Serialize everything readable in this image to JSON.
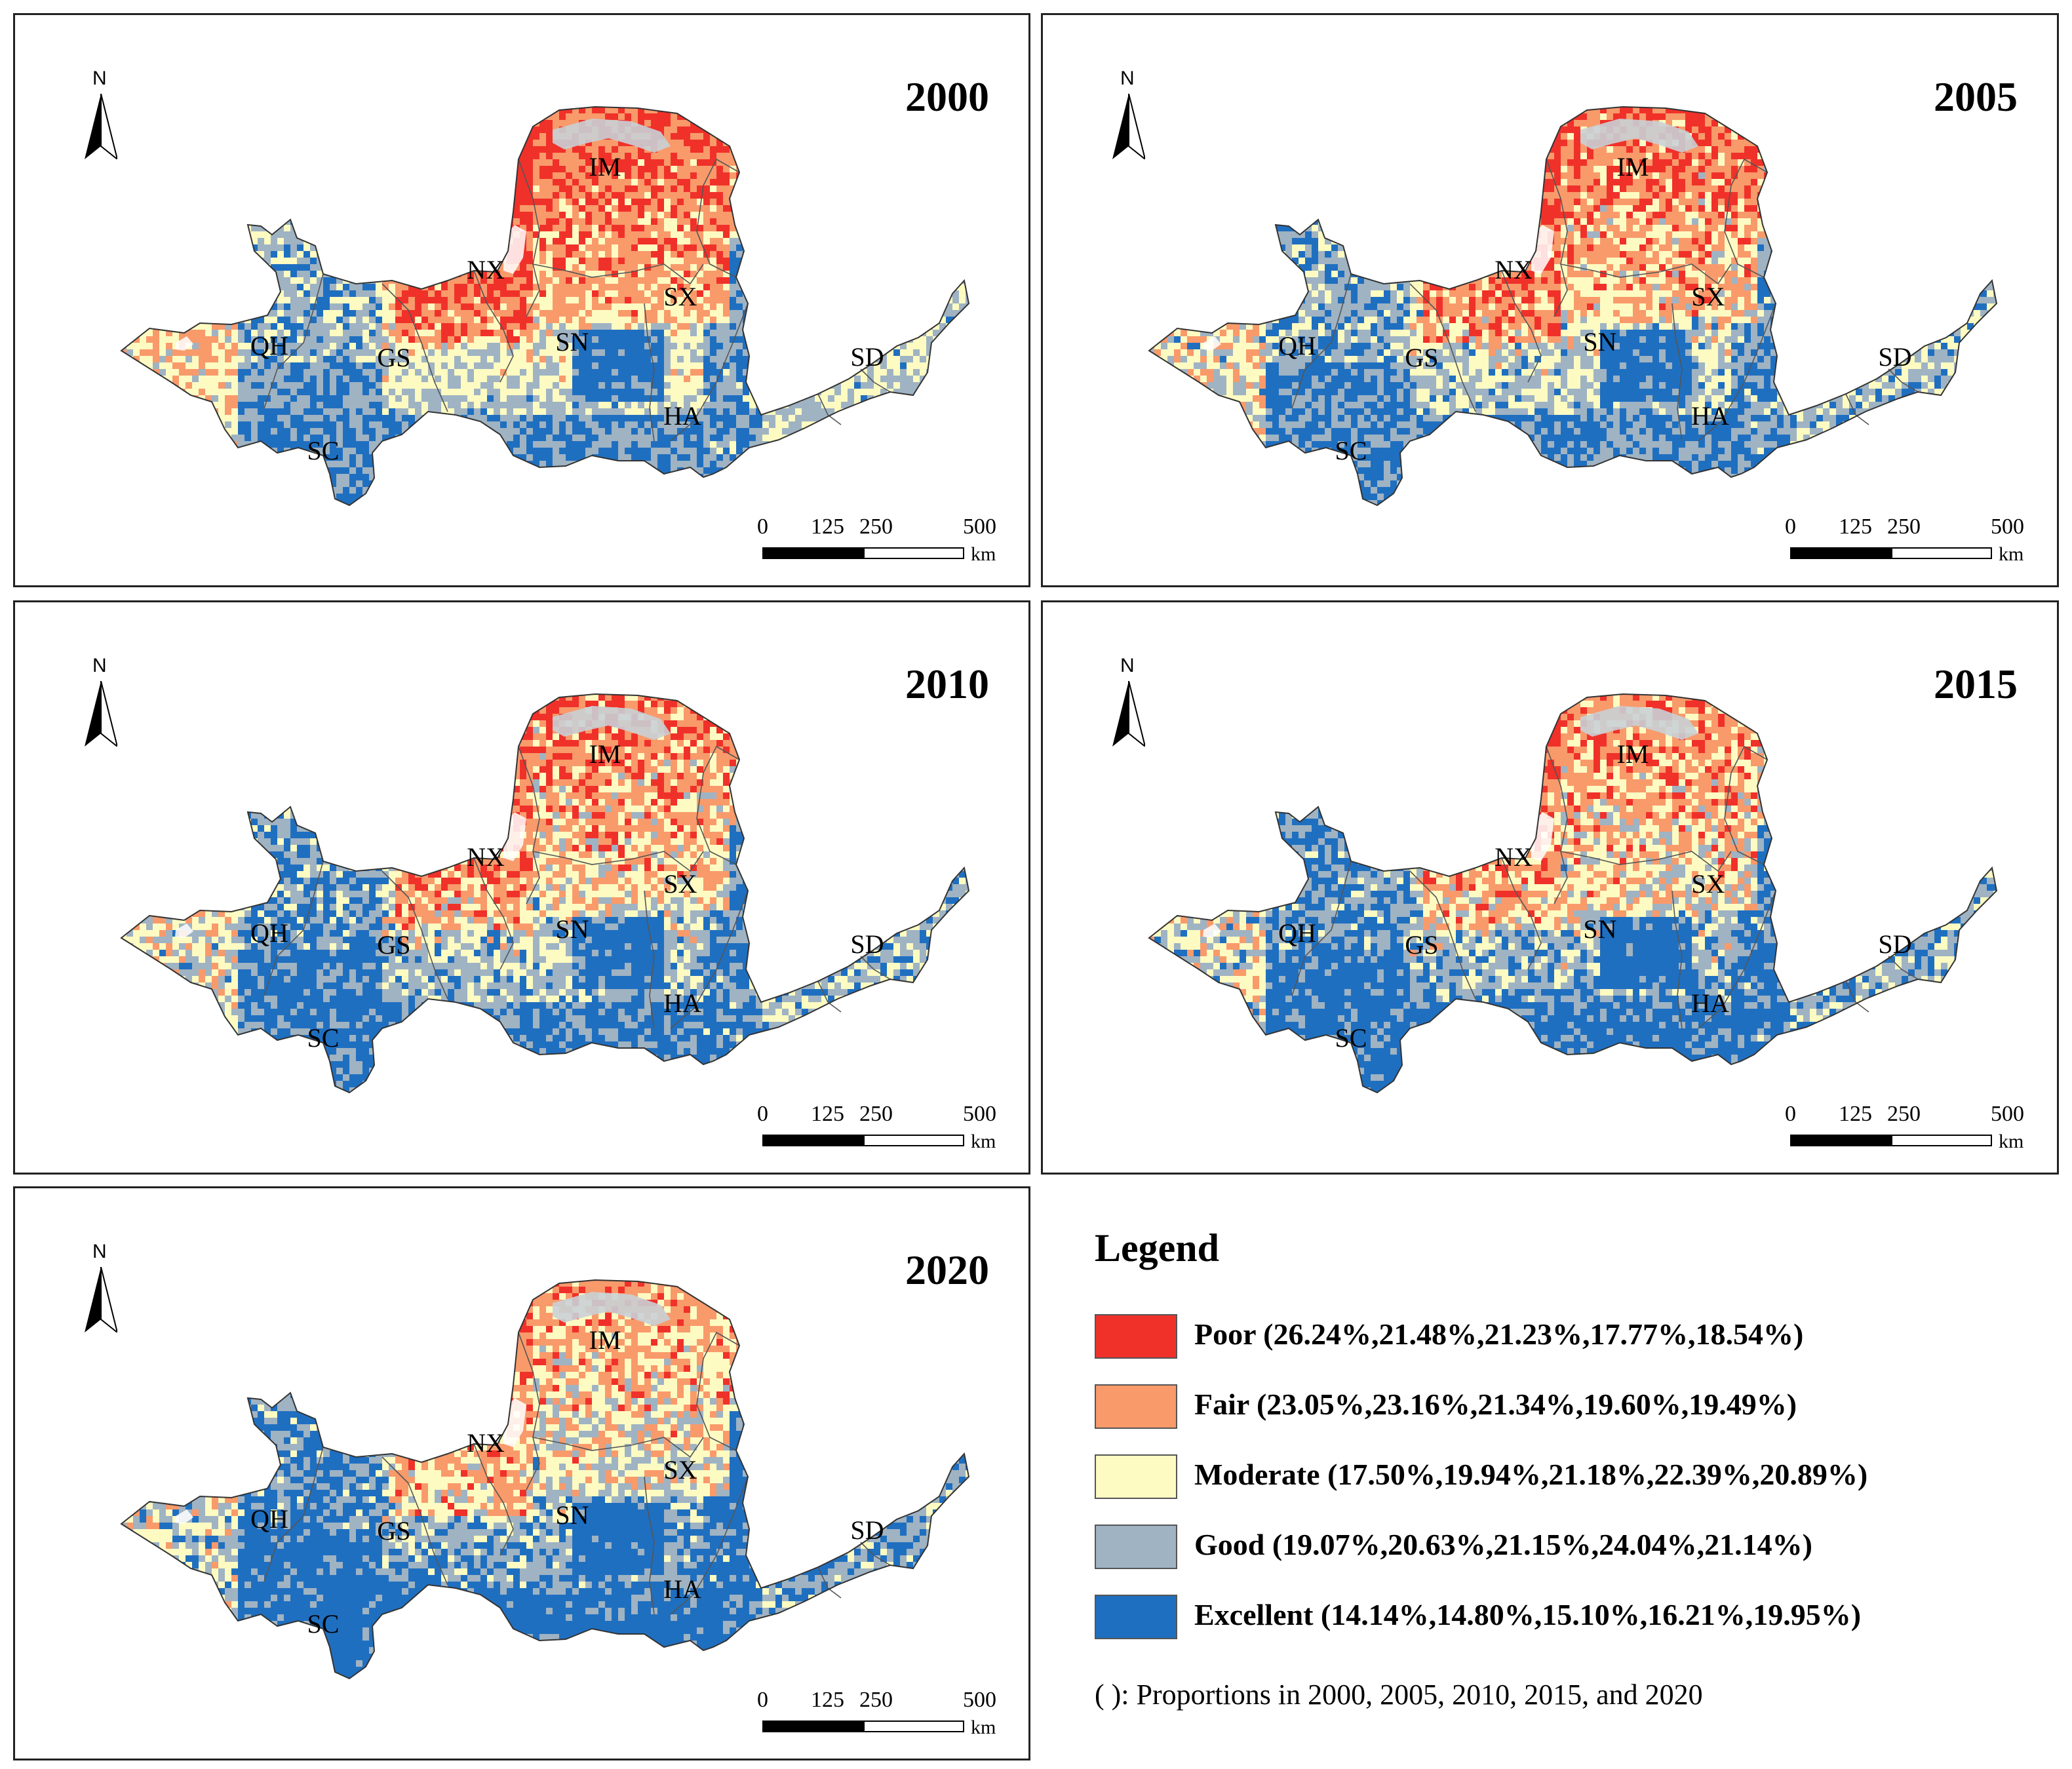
{
  "panels": [
    {
      "year": "2000",
      "variant": 0
    },
    {
      "year": "2005",
      "variant": 1
    },
    {
      "year": "2010",
      "variant": 2
    },
    {
      "year": "2015",
      "variant": 3
    },
    {
      "year": "2020",
      "variant": 4
    }
  ],
  "north_label": "N",
  "scale": {
    "ticks": [
      "0",
      "125",
      "250",
      "500"
    ],
    "unit": "km"
  },
  "provinces": [
    "IM",
    "NX",
    "SX",
    "QH",
    "GS",
    "SN",
    "SD",
    "HA",
    "SC"
  ],
  "legend": {
    "title": "Legend",
    "items": [
      {
        "label": "Poor (26.24%,21.48%,21.23%,17.77%,18.54%)",
        "color": "#f0312a"
      },
      {
        "label": "Fair (23.05%,23.16%,21.34%,19.60%,19.49%)",
        "color": "#f99a6b"
      },
      {
        "label": "Moderate (17.50%,19.94%,21.18%,22.39%,20.89%)",
        "color": "#fdfbc2"
      },
      {
        "label": "Good (19.07%,20.63%,21.15%,24.04%,21.14%)",
        "color": "#9fb3c3"
      },
      {
        "label": "Excellent (14.14%,14.80%,15.10%,16.21%,19.95%)",
        "color": "#1f6fc0"
      }
    ],
    "note": "( ): Proportions in 2000, 2005, 2010, 2015, and 2020"
  }
}
